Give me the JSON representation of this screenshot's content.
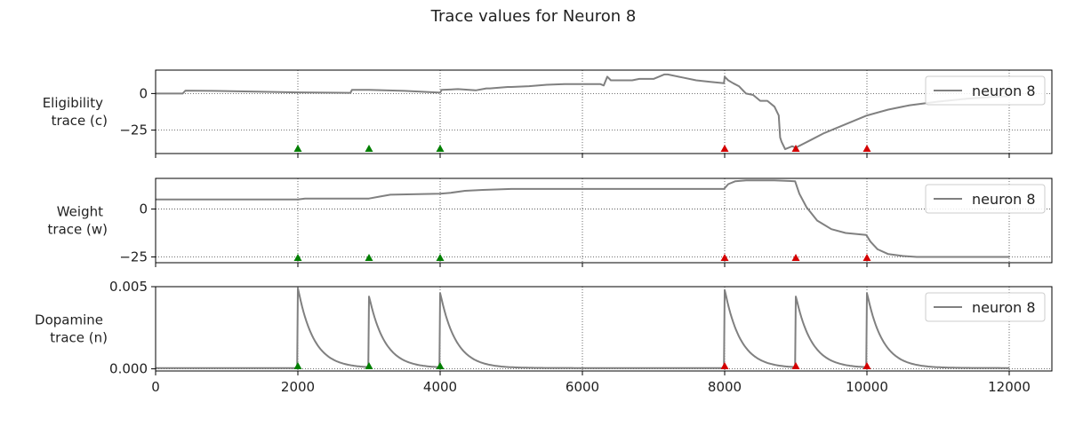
{
  "figure": {
    "title": "Trace values for Neuron 8"
  },
  "colors": {
    "line": "#808080",
    "reward_marker": "#007f00",
    "punish_marker": "#d40000",
    "grid": "#444444",
    "axes": "#000000"
  },
  "chart_data": [
    {
      "type": "line",
      "ylabel_lines": [
        "Eligibility",
        "trace (c)"
      ],
      "xlim": [
        0,
        12600
      ],
      "ylim": [
        -41,
        16
      ],
      "yticks": [
        0,
        -25
      ],
      "ytick_labels": [
        "0",
        "−25"
      ],
      "xticks": [
        0,
        2000,
        4000,
        6000,
        8000,
        10000,
        12000
      ],
      "grid": true,
      "legend": {
        "position": "top-right",
        "label": "neuron 8"
      },
      "series": [
        {
          "name": "neuron 8",
          "x": [
            0,
            380,
            420,
            800,
            1500,
            2000,
            2740,
            2760,
            3000,
            3500,
            4000,
            4020,
            4250,
            4500,
            4650,
            4700,
            4950,
            5000,
            5250,
            5500,
            5750,
            6000,
            6250,
            6300,
            6350,
            6400,
            6700,
            6800,
            7000,
            7150,
            7200,
            7400,
            7600,
            7800,
            7990,
            8000,
            8050,
            8120,
            8200,
            8300,
            8400,
            8500,
            8600,
            8700,
            8760,
            8780,
            8800,
            8850,
            8950,
            9000,
            9200,
            9400,
            9600,
            9800,
            10000,
            10300,
            10600,
            11000,
            11400,
            11800,
            12000
          ],
          "y": [
            0,
            0,
            2,
            1.8,
            1.2,
            0.8,
            0.5,
            2.5,
            2.5,
            1.8,
            0.6,
            2.5,
            3,
            2.2,
            3.5,
            3.5,
            4.5,
            4.5,
            5,
            6,
            6.5,
            6.5,
            6.5,
            5.5,
            11.5,
            9,
            9,
            10,
            10,
            13,
            13,
            11,
            9,
            8,
            7,
            11.5,
            9,
            7,
            5,
            0,
            -1,
            -5,
            -5,
            -9,
            -15,
            -30,
            -33,
            -38,
            -36,
            -37,
            -32,
            -27,
            -23,
            -19,
            -15,
            -11,
            -8,
            -5.5,
            -3.5,
            -2.2,
            -1.8
          ]
        }
      ],
      "reward_markers": [
        2000,
        3000,
        4000
      ],
      "punish_markers": [
        8000,
        9000,
        10000
      ]
    },
    {
      "type": "line",
      "ylabel_lines": [
        "Weight",
        "trace (w)"
      ],
      "xlim": [
        0,
        12600
      ],
      "ylim": [
        -28,
        16
      ],
      "yticks": [
        0,
        -25
      ],
      "ytick_labels": [
        "0",
        "−25"
      ],
      "xticks": [
        0,
        2000,
        4000,
        6000,
        8000,
        10000,
        12000
      ],
      "grid": true,
      "legend": {
        "position": "top-right",
        "label": "neuron 8"
      },
      "series": [
        {
          "name": "neuron 8",
          "x": [
            0,
            2000,
            2100,
            3000,
            3150,
            3300,
            4000,
            4150,
            4350,
            4600,
            5000,
            6000,
            7000,
            7990,
            8050,
            8150,
            8300,
            8500,
            8700,
            8990,
            9050,
            9150,
            9300,
            9500,
            9700,
            9990,
            10050,
            10150,
            10300,
            10500,
            10700,
            11000,
            12000
          ],
          "y": [
            5,
            5,
            5.5,
            5.5,
            6.5,
            7.5,
            8,
            8.5,
            9.5,
            10,
            10.5,
            10.5,
            10.5,
            10.5,
            13,
            14.5,
            15,
            15,
            15,
            14.5,
            8,
            1,
            -6,
            -10.5,
            -12.5,
            -13.5,
            -17,
            -21,
            -23.5,
            -24.5,
            -25,
            -25,
            -25
          ]
        }
      ],
      "reward_markers": [
        2000,
        3000,
        4000
      ],
      "punish_markers": [
        8000,
        9000,
        10000
      ]
    },
    {
      "type": "line",
      "ylabel_lines": [
        "Dopamine",
        "trace (n)"
      ],
      "xlim": [
        0,
        12600
      ],
      "ylim": [
        -0.00013,
        0.005
      ],
      "yticks": [
        0.005,
        0
      ],
      "ytick_labels": [
        "0.005",
        "0.000"
      ],
      "xticks": [
        0,
        2000,
        4000,
        6000,
        8000,
        10000,
        12000
      ],
      "xtick_labels": [
        "0",
        "2000",
        "4000",
        "6000",
        "8000",
        "10000",
        "12000"
      ],
      "grid": true,
      "legend": {
        "position": "top-right",
        "label": "neuron 8"
      },
      "series": [
        {
          "name": "neuron 8",
          "pulses": [
            {
              "t": 2000,
              "peak": 0.0049,
              "tau": 220
            },
            {
              "t": 3000,
              "peak": 0.0044,
              "tau": 220
            },
            {
              "t": 4000,
              "peak": 0.0046,
              "tau": 220
            },
            {
              "t": 8000,
              "peak": 0.0048,
              "tau": 220
            },
            {
              "t": 9000,
              "peak": 0.0044,
              "tau": 220
            },
            {
              "t": 10000,
              "peak": 0.0046,
              "tau": 220
            }
          ],
          "baseline": 5e-05,
          "x_end": 12000
        }
      ],
      "reward_markers": [
        2000,
        3000,
        4000
      ],
      "punish_markers": [
        8000,
        9000,
        10000
      ]
    }
  ]
}
